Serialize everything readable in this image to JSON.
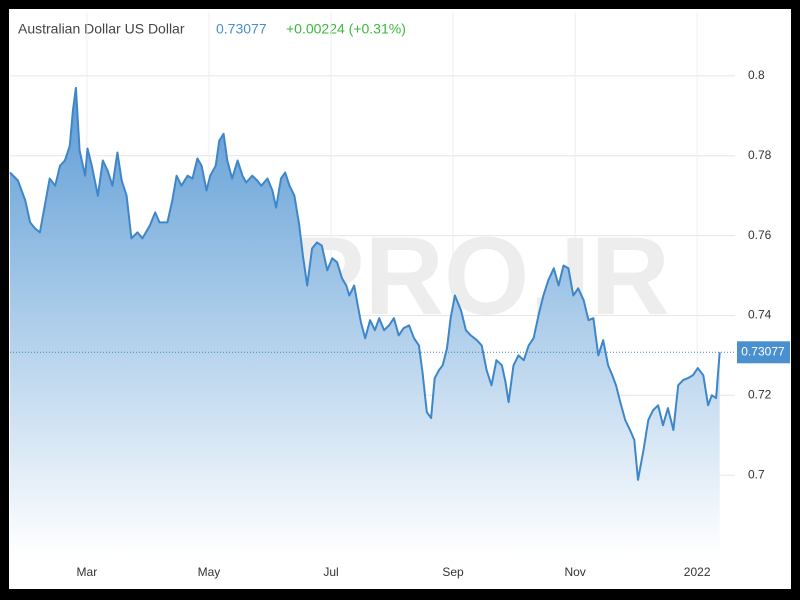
{
  "chart_data": {
    "type": "area",
    "title": "Australian Dollar US Dollar",
    "price": "0.73077",
    "change": "+0.00224 (+0.31%)",
    "watermark": "CMPRO.IR",
    "line_color": "#3f86c8",
    "fill_color": "#5b9bd5",
    "price_color": "#4a8fd0",
    "change_color": "#3cb83c",
    "grid": true,
    "xlim": [
      0.74,
      12.62
    ],
    "xticks": [
      {
        "value": 2,
        "label": "Mar"
      },
      {
        "value": 4,
        "label": "May"
      },
      {
        "value": 6,
        "label": "Jul"
      },
      {
        "value": 8,
        "label": "Sep"
      },
      {
        "value": 10,
        "label": "Nov"
      },
      {
        "value": 12,
        "label": "2022"
      }
    ],
    "ylim": [
      0.68,
      0.816
    ],
    "yticks": [
      0.7,
      0.72,
      0.74,
      0.76,
      0.78,
      0.8
    ],
    "x": [
      0.74,
      0.87,
      0.99,
      1.07,
      1.15,
      1.23,
      1.31,
      1.39,
      1.48,
      1.56,
      1.64,
      1.72,
      1.77,
      1.82,
      1.88,
      1.97,
      2.01,
      2.08,
      2.18,
      2.26,
      2.34,
      2.42,
      2.5,
      2.57,
      2.65,
      2.73,
      2.83,
      2.91,
      3.03,
      3.12,
      3.19,
      3.32,
      3.4,
      3.47,
      3.55,
      3.65,
      3.73,
      3.81,
      3.88,
      3.96,
      4.02,
      4.11,
      4.17,
      4.24,
      4.3,
      4.38,
      4.47,
      4.55,
      4.61,
      4.71,
      4.79,
      4.86,
      4.96,
      5.04,
      5.1,
      5.18,
      5.25,
      5.32,
      5.4,
      5.48,
      5.54,
      5.61,
      5.69,
      5.77,
      5.85,
      5.94,
      6.02,
      6.1,
      6.18,
      6.25,
      6.3,
      6.38,
      6.43,
      6.49,
      6.56,
      6.64,
      6.72,
      6.79,
      6.87,
      6.95,
      7.03,
      7.11,
      7.19,
      7.28,
      7.36,
      7.44,
      7.5,
      7.57,
      7.64,
      7.7,
      7.77,
      7.83,
      7.9,
      7.96,
      8.03,
      8.13,
      8.21,
      8.29,
      8.39,
      8.47,
      8.55,
      8.63,
      8.71,
      8.8,
      8.86,
      8.91,
      8.99,
      9.07,
      9.16,
      9.24,
      9.32,
      9.4,
      9.48,
      9.56,
      9.65,
      9.73,
      9.81,
      9.89,
      9.97,
      10.05,
      10.14,
      10.22,
      10.3,
      10.38,
      10.46,
      10.54,
      10.61,
      10.67,
      10.74,
      10.82,
      10.9,
      10.97,
      11.03,
      11.12,
      11.2,
      11.28,
      11.36,
      11.44,
      11.52,
      11.61,
      11.69,
      11.77,
      11.85,
      11.93,
      12.01,
      12.1,
      12.18,
      12.24,
      12.31,
      12.37
    ],
    "values": [
      0.7758,
      0.7738,
      0.7688,
      0.7633,
      0.7618,
      0.7608,
      0.7675,
      0.7743,
      0.7725,
      0.7775,
      0.7788,
      0.7825,
      0.7913,
      0.797,
      0.7813,
      0.775,
      0.7818,
      0.7775,
      0.77,
      0.7788,
      0.7763,
      0.7725,
      0.7808,
      0.7738,
      0.77,
      0.7593,
      0.7608,
      0.7593,
      0.7625,
      0.7658,
      0.7633,
      0.7633,
      0.7688,
      0.775,
      0.7725,
      0.775,
      0.7743,
      0.7793,
      0.7775,
      0.7713,
      0.775,
      0.7775,
      0.7838,
      0.7855,
      0.7788,
      0.7743,
      0.7788,
      0.775,
      0.7733,
      0.775,
      0.7738,
      0.7725,
      0.7743,
      0.7713,
      0.767,
      0.7743,
      0.7758,
      0.7725,
      0.77,
      0.7625,
      0.755,
      0.7475,
      0.7568,
      0.7583,
      0.7575,
      0.7513,
      0.7543,
      0.7533,
      0.7493,
      0.7475,
      0.745,
      0.7475,
      0.7433,
      0.7383,
      0.7343,
      0.7388,
      0.7363,
      0.7393,
      0.7363,
      0.7375,
      0.7393,
      0.735,
      0.7368,
      0.7375,
      0.7343,
      0.7325,
      0.7258,
      0.7158,
      0.7143,
      0.7243,
      0.7263,
      0.7275,
      0.7318,
      0.7393,
      0.745,
      0.7413,
      0.7363,
      0.735,
      0.7338,
      0.7325,
      0.7263,
      0.7225,
      0.7288,
      0.7275,
      0.7233,
      0.7183,
      0.7275,
      0.73,
      0.7288,
      0.7325,
      0.7343,
      0.74,
      0.745,
      0.7488,
      0.7518,
      0.7475,
      0.7525,
      0.7518,
      0.745,
      0.7468,
      0.7438,
      0.7388,
      0.7393,
      0.73,
      0.7338,
      0.7275,
      0.725,
      0.7225,
      0.7183,
      0.7138,
      0.7113,
      0.7088,
      0.6988,
      0.7063,
      0.7138,
      0.7163,
      0.7175,
      0.7125,
      0.7168,
      0.7113,
      0.7225,
      0.7238,
      0.7243,
      0.725,
      0.7268,
      0.725,
      0.7175,
      0.72,
      0.7193,
      0.73077
    ]
  }
}
